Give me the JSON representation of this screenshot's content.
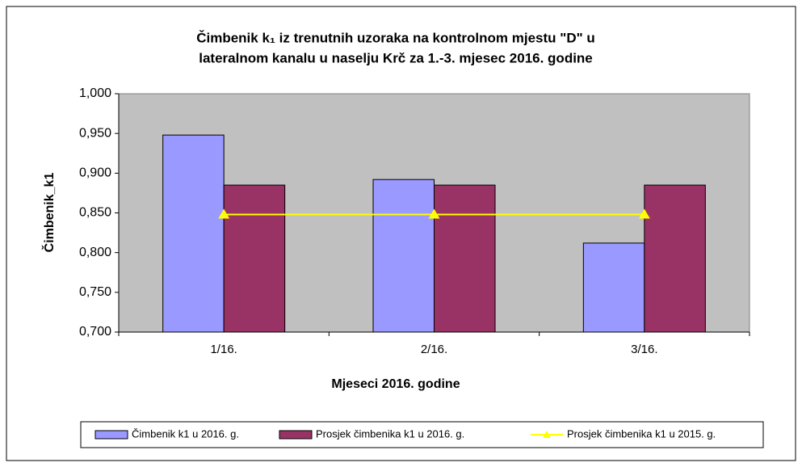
{
  "chart_data": {
    "type": "bar",
    "title": [
      "Čimbenik k₁ iz trenutnih uzoraka na kontrolnom mjestu \"D\" u",
      "lateralnom kanalu u naselju Krč za 1.-3. mjesec 2016. godine"
    ],
    "x_label": "Mjeseci  2016. godine",
    "y_label": "Čimbenik_k1",
    "categories": [
      "1/16.",
      "2/16.",
      "3/16."
    ],
    "series": [
      {
        "name": "Čimbenik k1 u 2016. g.",
        "type": "bar",
        "color": "#9999ff",
        "values": [
          0.948,
          0.892,
          0.812
        ]
      },
      {
        "name": "Prosjek čimbenika k1 u 2016. g.",
        "type": "bar",
        "color": "#993366",
        "values": [
          0.885,
          0.885,
          0.885
        ]
      },
      {
        "name": "Prosjek čimbenika k1 u 2015. g.",
        "type": "line",
        "color": "#ffff00",
        "values": [
          0.848,
          0.848,
          0.848
        ]
      }
    ],
    "ylim": [
      0.7,
      1.0
    ],
    "yticks": [
      {
        "value": 0.7,
        "label": "0,700"
      },
      {
        "value": 0.75,
        "label": "0,750"
      },
      {
        "value": 0.8,
        "label": "0,800"
      },
      {
        "value": 0.85,
        "label": "0,850"
      },
      {
        "value": 0.9,
        "label": "0,900"
      },
      {
        "value": 0.95,
        "label": "0,950"
      },
      {
        "value": 1.0,
        "label": "1,000"
      }
    ],
    "grid": false,
    "plot_background": "#c0c0c0",
    "legend": "bottom"
  }
}
